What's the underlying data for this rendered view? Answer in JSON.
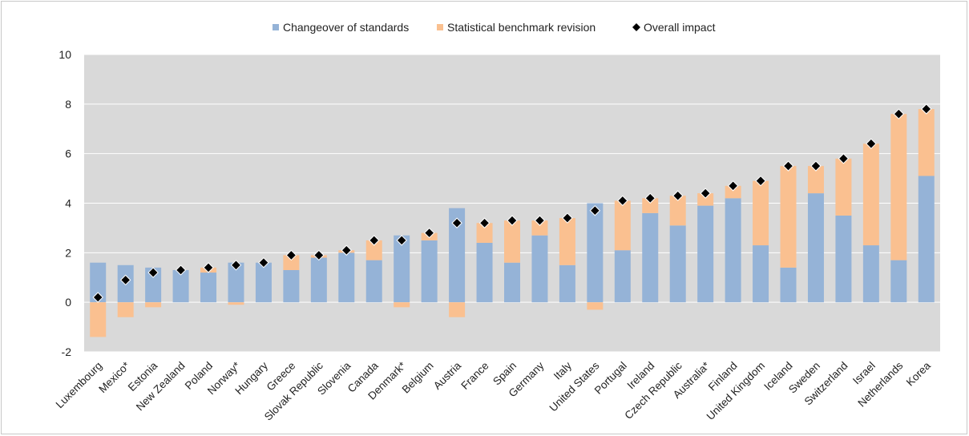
{
  "chart_data": {
    "type": "bar",
    "stacked": true,
    "categories": [
      "Luxembourg",
      "Mexico*",
      "Estonia",
      "New Zealand",
      "Poland",
      "Norway*",
      "Hungary",
      "Greece",
      "Slovak Republic",
      "Slovenia",
      "Canada",
      "Denmark*",
      "Belgium",
      "Austria",
      "France",
      "Spain",
      "Germany",
      "Italy",
      "United States",
      "Portugal",
      "Ireland",
      "Czech Republic",
      "Australia*",
      "Finland",
      "United Kingdom",
      "Iceland",
      "Sweden",
      "Switzerland",
      "Israel",
      "Netherlands",
      "Korea"
    ],
    "series": [
      {
        "name": "Changeover of standards",
        "color": "#95b3d7",
        "values": [
          1.6,
          1.5,
          1.4,
          1.3,
          1.2,
          1.6,
          1.6,
          1.3,
          1.8,
          2.0,
          1.7,
          2.7,
          2.5,
          3.8,
          2.4,
          1.6,
          2.7,
          1.5,
          4.0,
          2.1,
          3.6,
          3.1,
          3.9,
          4.2,
          2.3,
          1.4,
          4.4,
          3.5,
          2.3,
          1.7,
          5.1
        ]
      },
      {
        "name": "Statistical benchmark revision",
        "color": "#fac090",
        "values": [
          -1.4,
          -0.6,
          -0.2,
          0.0,
          0.2,
          -0.1,
          0.0,
          0.6,
          0.1,
          0.1,
          0.8,
          -0.2,
          0.3,
          -0.6,
          0.8,
          1.7,
          0.6,
          1.9,
          -0.3,
          2.0,
          0.6,
          1.2,
          0.5,
          0.5,
          2.6,
          4.1,
          1.1,
          2.3,
          4.1,
          5.9,
          2.7
        ]
      },
      {
        "name": "Overall impact",
        "type": "marker",
        "marker": "diamond",
        "color": "#000000",
        "values": [
          0.2,
          0.9,
          1.2,
          1.3,
          1.4,
          1.5,
          1.6,
          1.9,
          1.9,
          2.1,
          2.5,
          2.5,
          2.8,
          3.2,
          3.2,
          3.3,
          3.3,
          3.4,
          3.7,
          4.1,
          4.2,
          4.3,
          4.4,
          4.7,
          4.9,
          5.5,
          5.5,
          5.8,
          6.4,
          7.6,
          7.8
        ]
      }
    ],
    "ylim": [
      -2,
      10
    ],
    "yticks": [
      "-2",
      "0",
      "2",
      "4",
      "6",
      "8",
      "10"
    ],
    "ytick_values": [
      -2,
      0,
      2,
      4,
      6,
      8,
      10
    ],
    "grid": "horizontal",
    "legend_position": "top",
    "plot_background": "#d9d9d9",
    "xlabel": "",
    "ylabel": "",
    "title": ""
  }
}
